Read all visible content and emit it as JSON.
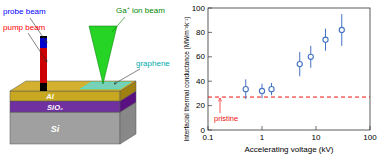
{
  "chart_data": {
    "type": "scatter",
    "xlabel": "Accelerating voltage (kV)",
    "ylabel": "Interfacial thermal conductance (MWm⁻²k⁻¹)",
    "x": [
      0.5,
      1.0,
      1.5,
      5.0,
      8.0,
      15.0,
      30.0
    ],
    "series": [
      {
        "color": "#4472C4",
        "marker": "circle",
        "values": [
          33.5,
          32.0,
          33.5,
          54.0,
          60.0,
          74.0,
          82.0
        ],
        "errors": [
          8.0,
          6.0,
          5.0,
          10.0,
          9.0,
          9.0,
          13.0
        ]
      }
    ],
    "pristine": {
      "value": 27.0,
      "label": "pristine",
      "color": "#EE1111",
      "line_style": "dashed"
    },
    "log": "x",
    "xlim": [
      0.1,
      100
    ],
    "ylim": [
      0,
      100
    ],
    "xticks": [
      0.1,
      1,
      10,
      100
    ],
    "yticks": [
      0,
      20,
      40,
      60,
      80,
      100
    ],
    "grid": false,
    "annotations": [
      "probe beam",
      "pump beam",
      "Ga⁺ ion beam",
      "Al",
      "SiO₂",
      "Si",
      "graphene"
    ]
  }
}
